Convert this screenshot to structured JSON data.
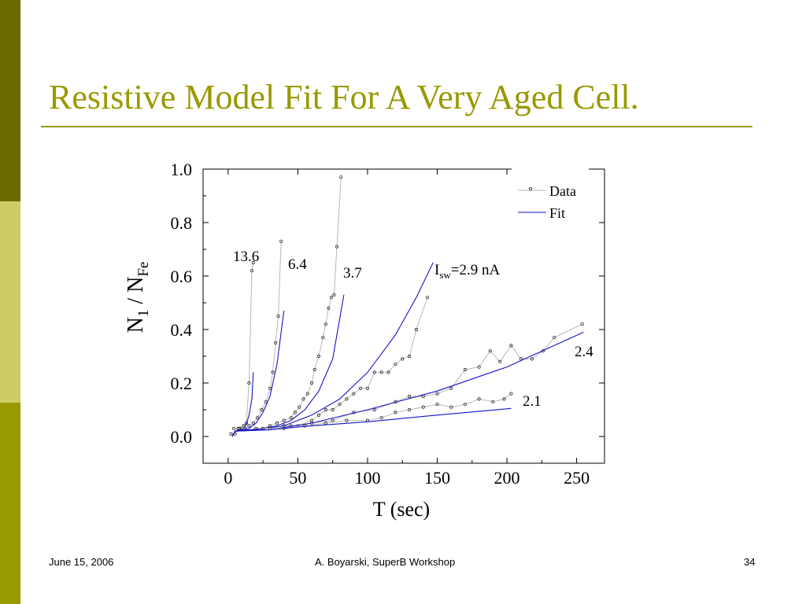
{
  "slide": {
    "title": "Resistive Model Fit For A Very Aged Cell.",
    "footer_date": "June 15, 2006",
    "footer_center": "A. Boyarski,  SuperB Workshop",
    "footer_page": "34",
    "colors": {
      "accent": "#999900",
      "bar_dark": "#6b6b00",
      "bar_light": "#cccc66"
    }
  },
  "chart_data": {
    "type": "scatter",
    "title": "",
    "xlabel": "T (sec)",
    "ylabel": {
      "N": "N",
      "sub1": "1",
      "slash": " / N",
      "sub2": "Fe"
    },
    "xlim": [
      -18,
      270
    ],
    "ylim": [
      -0.1,
      1.0
    ],
    "x_ticks": [
      0,
      50,
      100,
      150,
      200,
      250
    ],
    "x_tick_labels": [
      "0",
      "50",
      "100",
      "150",
      "200",
      "250"
    ],
    "y_ticks": [
      0.0,
      0.2,
      0.4,
      0.6,
      0.8,
      1.0
    ],
    "y_tick_labels": [
      "0.0",
      "0.2",
      "0.4",
      "0.6",
      "0.8",
      "1.0"
    ],
    "legend": {
      "position": "top-right",
      "data_label": "Data",
      "fit_label": "Fit"
    },
    "colors": {
      "data_line": "#b8b8b8",
      "data_marker": "#222222",
      "fit": "#1515c8",
      "axis": "#000000"
    },
    "series": [
      {
        "current": "13.6",
        "data": [
          [
            2,
            0.01
          ],
          [
            5,
            0.01
          ],
          [
            7,
            0.03
          ],
          [
            9,
            0.03
          ],
          [
            11,
            0.04
          ],
          [
            13,
            0.05
          ],
          [
            15,
            0.2
          ],
          [
            17,
            0.62
          ],
          [
            18,
            0.65
          ]
        ],
        "fit": [
          [
            3,
            0
          ],
          [
            5,
            0.02
          ],
          [
            8,
            0.025
          ],
          [
            11,
            0.03
          ],
          [
            13,
            0.045
          ],
          [
            15,
            0.08
          ],
          [
            17,
            0.14
          ],
          [
            18,
            0.24
          ]
        ]
      },
      {
        "current": "6.4",
        "data": [
          [
            4,
            0.03
          ],
          [
            8,
            0.03
          ],
          [
            12,
            0.03
          ],
          [
            15,
            0.04
          ],
          [
            18,
            0.05
          ],
          [
            21,
            0.07
          ],
          [
            24,
            0.1
          ],
          [
            27,
            0.13
          ],
          [
            30,
            0.18
          ],
          [
            32,
            0.24
          ],
          [
            34,
            0.35
          ],
          [
            36,
            0.45
          ],
          [
            38,
            0.73
          ]
        ],
        "fit": [
          [
            3,
            0
          ],
          [
            5,
            0.02
          ],
          [
            10,
            0.025
          ],
          [
            15,
            0.03
          ],
          [
            20,
            0.05
          ],
          [
            25,
            0.09
          ],
          [
            30,
            0.15
          ],
          [
            35,
            0.27
          ],
          [
            40,
            0.47
          ]
        ]
      },
      {
        "current": "3.7",
        "data": [
          [
            20,
            0.03
          ],
          [
            25,
            0.03
          ],
          [
            30,
            0.04
          ],
          [
            35,
            0.05
          ],
          [
            40,
            0.06
          ],
          [
            45,
            0.07
          ],
          [
            48,
            0.09
          ],
          [
            51,
            0.11
          ],
          [
            54,
            0.14
          ],
          [
            57,
            0.16
          ],
          [
            60,
            0.2
          ],
          [
            62,
            0.25
          ],
          [
            65,
            0.3
          ],
          [
            68,
            0.37
          ],
          [
            70,
            0.42
          ],
          [
            72,
            0.48
          ],
          [
            74,
            0.52
          ],
          [
            76,
            0.53
          ],
          [
            78,
            0.71
          ],
          [
            81,
            0.97
          ]
        ],
        "fit": [
          [
            3,
            0
          ],
          [
            5,
            0.02
          ],
          [
            15,
            0.025
          ],
          [
            25,
            0.03
          ],
          [
            35,
            0.04
          ],
          [
            45,
            0.06
          ],
          [
            55,
            0.1
          ],
          [
            65,
            0.17
          ],
          [
            75,
            0.29
          ],
          [
            83,
            0.53
          ]
        ]
      },
      {
        "current": "I_sw=2.9 nA",
        "label_main": "I",
        "label_sub": "sw",
        "label_rest": "=2.9  nA",
        "data": [
          [
            20,
            0.03
          ],
          [
            30,
            0.03
          ],
          [
            40,
            0.04
          ],
          [
            50,
            0.04
          ],
          [
            60,
            0.06
          ],
          [
            65,
            0.08
          ],
          [
            70,
            0.1
          ],
          [
            75,
            0.1
          ],
          [
            80,
            0.12
          ],
          [
            85,
            0.14
          ],
          [
            90,
            0.16
          ],
          [
            95,
            0.18
          ],
          [
            100,
            0.18
          ],
          [
            105,
            0.24
          ],
          [
            110,
            0.24
          ],
          [
            115,
            0.24
          ],
          [
            120,
            0.27
          ],
          [
            125,
            0.29
          ],
          [
            130,
            0.3
          ],
          [
            135,
            0.4
          ],
          [
            143,
            0.52
          ]
        ],
        "fit": [
          [
            3,
            0
          ],
          [
            5,
            0.02
          ],
          [
            20,
            0.025
          ],
          [
            40,
            0.04
          ],
          [
            60,
            0.08
          ],
          [
            80,
            0.14
          ],
          [
            100,
            0.24
          ],
          [
            120,
            0.38
          ],
          [
            135,
            0.52
          ],
          [
            147,
            0.65
          ]
        ]
      },
      {
        "current": "2.4",
        "data": [
          [
            30,
            0.03
          ],
          [
            45,
            0.04
          ],
          [
            60,
            0.05
          ],
          [
            75,
            0.06
          ],
          [
            90,
            0.09
          ],
          [
            105,
            0.1
          ],
          [
            120,
            0.13
          ],
          [
            130,
            0.15
          ],
          [
            140,
            0.15
          ],
          [
            150,
            0.16
          ],
          [
            160,
            0.18
          ],
          [
            170,
            0.25
          ],
          [
            180,
            0.26
          ],
          [
            188,
            0.32
          ],
          [
            195,
            0.28
          ],
          [
            203,
            0.34
          ],
          [
            210,
            0.29
          ],
          [
            218,
            0.29
          ],
          [
            226,
            0.32
          ],
          [
            234,
            0.37
          ],
          [
            254,
            0.42
          ]
        ],
        "fit": [
          [
            3,
            0
          ],
          [
            5,
            0.02
          ],
          [
            30,
            0.025
          ],
          [
            60,
            0.05
          ],
          [
            100,
            0.1
          ],
          [
            150,
            0.17
          ],
          [
            200,
            0.26
          ],
          [
            255,
            0.39
          ]
        ]
      },
      {
        "current": "2.1",
        "data": [
          [
            25,
            0.03
          ],
          [
            40,
            0.03
          ],
          [
            55,
            0.04
          ],
          [
            70,
            0.05
          ],
          [
            85,
            0.06
          ],
          [
            100,
            0.06
          ],
          [
            110,
            0.07
          ],
          [
            120,
            0.09
          ],
          [
            130,
            0.1
          ],
          [
            140,
            0.11
          ],
          [
            150,
            0.12
          ],
          [
            160,
            0.11
          ],
          [
            170,
            0.12
          ],
          [
            180,
            0.14
          ],
          [
            190,
            0.13
          ],
          [
            198,
            0.14
          ],
          [
            203,
            0.16
          ]
        ],
        "fit": [
          [
            3,
            0
          ],
          [
            5,
            0.02
          ],
          [
            30,
            0.025
          ],
          [
            60,
            0.04
          ],
          [
            100,
            0.055
          ],
          [
            150,
            0.08
          ],
          [
            203,
            0.105
          ]
        ]
      }
    ]
  }
}
